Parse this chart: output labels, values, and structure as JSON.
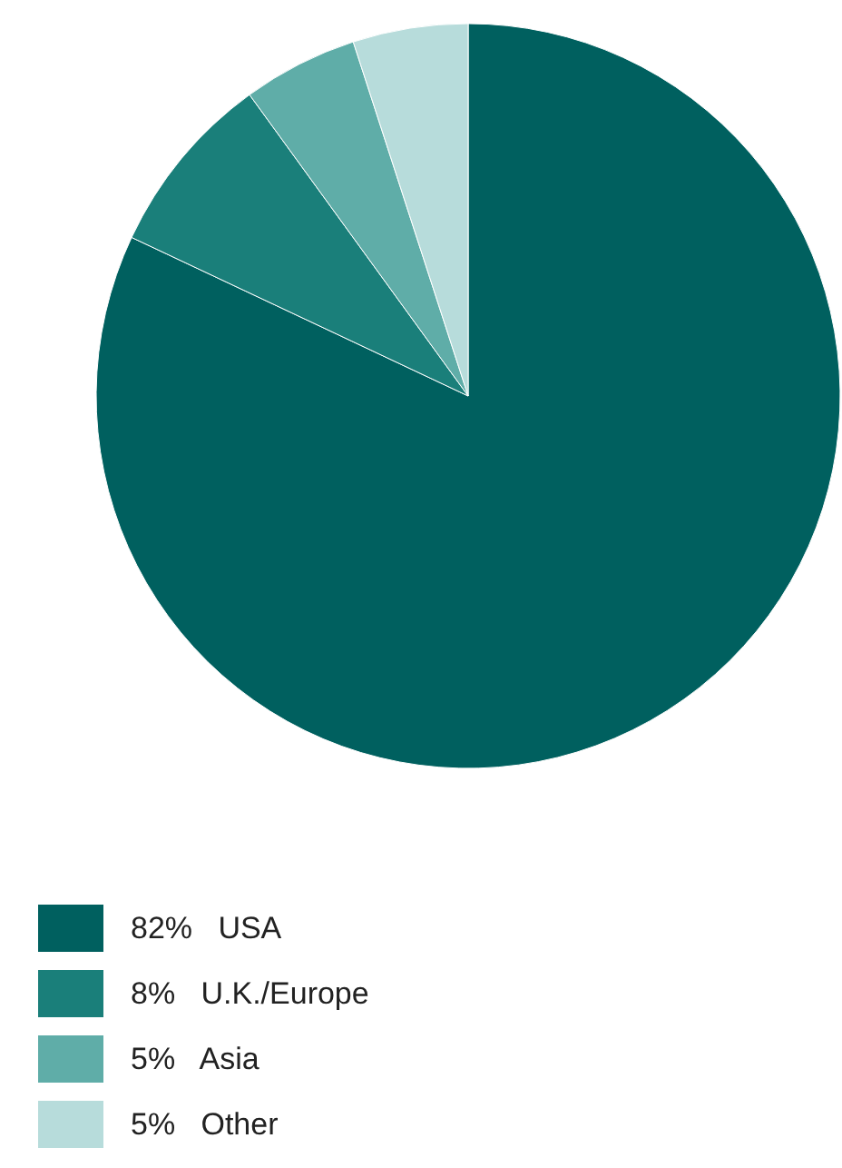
{
  "chart_data": {
    "type": "pie",
    "categories": [
      "USA",
      "U.K./Europe",
      "Asia",
      "Other"
    ],
    "values": [
      82,
      8,
      5,
      5
    ],
    "value_labels": [
      "82%",
      "8%",
      "5%",
      "5%"
    ],
    "colors": [
      "#00605f",
      "#1a7f7a",
      "#5fada8",
      "#b7dcdb"
    ],
    "legend": "bottom left"
  }
}
